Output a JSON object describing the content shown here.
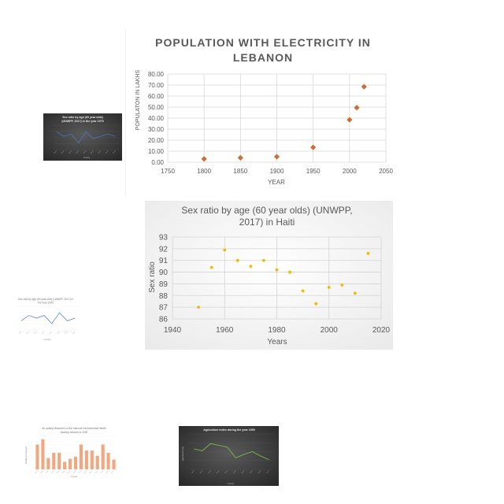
{
  "chart_data": [
    {
      "type": "scatter",
      "title": "POPULATION WITH ELECTRICITY IN LEBANON",
      "title_lines": [
        "POPULATION WITH ELECTRICITY IN",
        "LEBANON"
      ],
      "xlabel": "YEAR",
      "ylabel": "POPULATON IN LAKHS",
      "xlim": [
        1750,
        2050
      ],
      "ylim": [
        0,
        80
      ],
      "xticks": [
        "1750",
        "1800",
        "1850",
        "1900",
        "1950",
        "2000",
        "2050"
      ],
      "yticks": [
        "0.00",
        "10.00",
        "20.00",
        "30.00",
        "40.00",
        "50.00",
        "60.00",
        "70.00",
        "80.00"
      ],
      "grid": true,
      "marker": "diamond",
      "color": "#c8703a",
      "points": [
        {
          "x": 1800,
          "y": 3.0
        },
        {
          "x": 1850,
          "y": 4.0
        },
        {
          "x": 1900,
          "y": 5.0
        },
        {
          "x": 1950,
          "y": 13.5
        },
        {
          "x": 2000,
          "y": 38.5
        },
        {
          "x": 2010,
          "y": 49.5
        },
        {
          "x": 2020,
          "y": 68.5
        }
      ]
    },
    {
      "type": "scatter",
      "title": "Sex ratio by age (60 year olds) (UNWPP, 2017) in Haiti",
      "title_lines": [
        "Sex ratio by age (60 year olds) (UNWPP,",
        "2017) in Haiti"
      ],
      "xlabel": "Years",
      "ylabel": "Sex ratio",
      "xlim": [
        1940,
        2020
      ],
      "ylim": [
        86,
        93
      ],
      "xticks": [
        "1940",
        "1960",
        "1980",
        "2000",
        "2020"
      ],
      "yticks": [
        "86",
        "87",
        "88",
        "89",
        "90",
        "91",
        "92",
        "93"
      ],
      "grid": true,
      "color": "#f5b800",
      "points": [
        {
          "x": 1950,
          "y": 87.0
        },
        {
          "x": 1955,
          "y": 90.4
        },
        {
          "x": 1960,
          "y": 91.9
        },
        {
          "x": 1965,
          "y": 91.0
        },
        {
          "x": 1970,
          "y": 90.5
        },
        {
          "x": 1975,
          "y": 91.0
        },
        {
          "x": 1980,
          "y": 90.2
        },
        {
          "x": 1985,
          "y": 90.0
        },
        {
          "x": 1990,
          "y": 88.4
        },
        {
          "x": 1995,
          "y": 87.3
        },
        {
          "x": 2000,
          "y": 88.7
        },
        {
          "x": 2005,
          "y": 88.9
        },
        {
          "x": 2010,
          "y": 88.2
        },
        {
          "x": 2015,
          "y": 91.6
        }
      ]
    },
    {
      "type": "line",
      "title": "Sex ratio by age (60 year olds) (UNWPP, 2017) in the year 1975",
      "title_lines": [
        "Sex ratio by age (60 year olds)",
        "(UNWPP, 2017) in the year 1975"
      ],
      "xlabel": "Country",
      "theme": "dark",
      "color": "#4a78c8",
      "values": [
        62,
        60,
        61,
        57,
        62,
        59,
        60,
        61,
        60
      ]
    },
    {
      "type": "line",
      "title": "Sex ratio by age (60 year olds) (UNWPP, 2017) in the Year 2005",
      "title_lines": [
        "Sex ratio by age (60 year olds) (UNWPP, 2017) in",
        "the Year 2005"
      ],
      "xlabel": "Country",
      "theme": "light",
      "color": "#4a78c8",
      "values": [
        21,
        23,
        22,
        23,
        20,
        24,
        21,
        22
      ]
    },
    {
      "type": "bar",
      "title": "Air quality Measures on the national environmental health tracking network in 2000",
      "title_lines": [
        "Air quality Measures on the national environmental health",
        "tracking network in 2000"
      ],
      "xlabel": "Country",
      "ylabel": "Number of measures",
      "color": "#f0a882",
      "values": [
        33,
        40,
        15,
        22,
        22,
        10,
        14,
        17,
        33,
        25,
        25,
        18,
        33,
        22,
        13
      ]
    },
    {
      "type": "line",
      "title": "Agriculture index during the year 1999",
      "xlabel": "Country",
      "ylabel": "Agricultural index",
      "theme": "dark",
      "color": "#7ab648",
      "values": [
        98,
        96,
        104,
        102,
        100,
        88,
        92,
        95,
        90,
        86
      ]
    }
  ]
}
